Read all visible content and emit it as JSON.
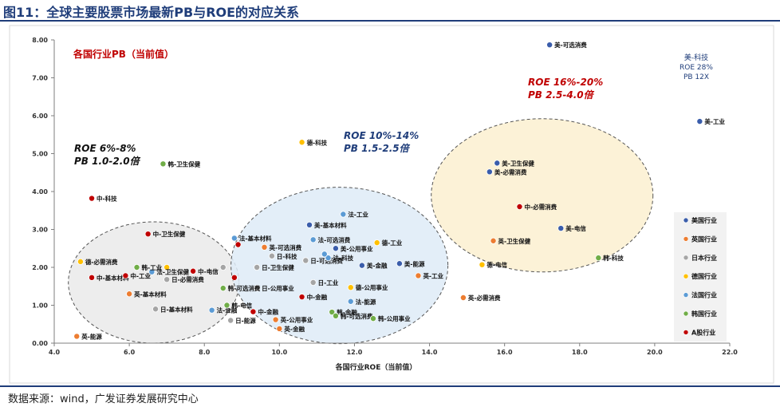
{
  "title": "图11：全球主要股票市场最新PB与ROE的对应关系",
  "source": "数据来源：wind，广发证券发展研究中心",
  "colors": {
    "美国行业": "#3a5dab",
    "英国行业": "#ed7d31",
    "日本行业": "#a5a5a5",
    "德国行业": "#ffc000",
    "法国行业": "#5b9bd5",
    "韩国行业": "#70ad47",
    "A股行业": "#c00000"
  },
  "chart_data": {
    "type": "scatter",
    "title": "",
    "xlabel": "各国行业ROE（当前值）",
    "ylabel": "各国行业PB（当前值）",
    "xlim": [
      4.0,
      22.0
    ],
    "ylim": [
      0.0,
      8.0
    ],
    "xticks": [
      "4.0",
      "6.0",
      "8.0",
      "10.0",
      "12.0",
      "14.0",
      "16.0",
      "18.0",
      "20.0",
      "22.0"
    ],
    "yticks": [
      "0.00",
      "1.00",
      "2.00",
      "3.00",
      "4.00",
      "5.00",
      "6.00",
      "7.00",
      "8.00"
    ],
    "legend": [
      "美国行业",
      "英国行业",
      "日本行业",
      "德国行业",
      "法国行业",
      "韩国行业",
      "A股行业"
    ],
    "legend_position": "right",
    "annotations": {
      "low": [
        "ROE  6%-8%",
        "PB  1.0-2.0倍"
      ],
      "mid": [
        "ROE  10%-14%",
        "PB  1.5-2.5倍"
      ],
      "high": [
        "ROE  16%-20%",
        "PB  2.5-4.0倍"
      ],
      "outlier": [
        "美-科技",
        "ROE 28%",
        "PB 12X"
      ]
    },
    "series": [
      {
        "name": "美国行业",
        "points": [
          {
            "x": 17.2,
            "y": 7.87,
            "label": "美-可选消费"
          },
          {
            "x": 21.2,
            "y": 5.85,
            "label": "美-工业"
          },
          {
            "x": 15.8,
            "y": 4.75,
            "label": "美-卫生保健"
          },
          {
            "x": 15.6,
            "y": 4.52,
            "label": "美-必需消费"
          },
          {
            "x": 17.5,
            "y": 3.03,
            "label": "美-电信"
          },
          {
            "x": 10.8,
            "y": 3.12,
            "label": "美-基本材料"
          },
          {
            "x": 13.2,
            "y": 2.1,
            "label": "美-能源"
          },
          {
            "x": 12.2,
            "y": 2.05,
            "label": "美-金融"
          },
          {
            "x": 11.5,
            "y": 2.5,
            "label": "美-公用事业"
          }
        ]
      },
      {
        "name": "英国行业",
        "points": [
          {
            "x": 15.7,
            "y": 2.7,
            "label": "英-卫生保健"
          },
          {
            "x": 14.9,
            "y": 1.2,
            "label": "英-必需消费"
          },
          {
            "x": 13.7,
            "y": 1.78,
            "label": "英-工业"
          },
          {
            "x": 9.6,
            "y": 2.53,
            "label": "英-可选消费"
          },
          {
            "x": 6.0,
            "y": 1.3,
            "label": "英-基本材料"
          },
          {
            "x": 4.6,
            "y": 0.18,
            "label": "英-能源"
          },
          {
            "x": 9.9,
            "y": 0.62,
            "label": "英-公用事业"
          },
          {
            "x": 10.0,
            "y": 0.38,
            "label": "英-金融"
          }
        ]
      },
      {
        "name": "日本行业",
        "points": [
          {
            "x": 9.8,
            "y": 2.3,
            "label": "日-科技"
          },
          {
            "x": 9.4,
            "y": 2.0,
            "label": "日-卫生保健"
          },
          {
            "x": 10.7,
            "y": 2.18,
            "label": "日-可选消费"
          },
          {
            "x": 9.4,
            "y": 1.45,
            "label": "日-公用事业"
          },
          {
            "x": 10.9,
            "y": 1.6,
            "label": "日-工业"
          },
          {
            "x": 7.0,
            "y": 1.68,
            "label": "日-必需消费"
          },
          {
            "x": 6.7,
            "y": 0.9,
            "label": "日-基本材料"
          },
          {
            "x": 8.7,
            "y": 0.6,
            "label": "日-能源"
          },
          {
            "x": 8.5,
            "y": 2.0,
            "label": ""
          }
        ]
      },
      {
        "name": "德国行业",
        "points": [
          {
            "x": 10.6,
            "y": 5.3,
            "label": "德-科技"
          },
          {
            "x": 4.7,
            "y": 2.15,
            "label": "德-必需消费"
          },
          {
            "x": 12.6,
            "y": 2.65,
            "label": "德-工业"
          },
          {
            "x": 15.4,
            "y": 2.07,
            "label": "德-电信"
          },
          {
            "x": 11.9,
            "y": 1.47,
            "label": "德-公用事业"
          },
          {
            "x": 7.0,
            "y": 2.0,
            "label": ""
          }
        ]
      },
      {
        "name": "法国行业",
        "points": [
          {
            "x": 11.7,
            "y": 3.4,
            "label": "法-工业"
          },
          {
            "x": 8.8,
            "y": 2.77,
            "label": "法-基本材料"
          },
          {
            "x": 10.9,
            "y": 2.73,
            "label": "法-可选消费"
          },
          {
            "x": 11.3,
            "y": 2.25,
            "label": "法-科技"
          },
          {
            "x": 6.6,
            "y": 1.88,
            "label": "法-卫生保健"
          },
          {
            "x": 11.9,
            "y": 1.1,
            "label": "法-能源"
          },
          {
            "x": 8.2,
            "y": 0.87,
            "label": "法-金融"
          },
          {
            "x": 11.2,
            "y": 2.35,
            "label": ""
          }
        ]
      },
      {
        "name": "韩国行业",
        "points": [
          {
            "x": 6.9,
            "y": 4.73,
            "label": "韩-卫生保健"
          },
          {
            "x": 18.5,
            "y": 2.25,
            "label": "韩-科技"
          },
          {
            "x": 6.2,
            "y": 2.0,
            "label": "韩-工业"
          },
          {
            "x": 8.6,
            "y": 1.0,
            "label": "韩-电信"
          },
          {
            "x": 11.4,
            "y": 0.82,
            "label": "韩-金融"
          },
          {
            "x": 11.5,
            "y": 0.72,
            "label": "韩-可选消费"
          },
          {
            "x": 12.5,
            "y": 0.65,
            "label": "韩-公用事业"
          },
          {
            "x": 8.5,
            "y": 1.45,
            "label": "韩-可选消费"
          }
        ]
      },
      {
        "name": "A股行业",
        "points": [
          {
            "x": 5.0,
            "y": 3.82,
            "label": "中-科技"
          },
          {
            "x": 16.4,
            "y": 3.6,
            "label": "中-必需消费"
          },
          {
            "x": 6.5,
            "y": 2.88,
            "label": "中-卫生保健"
          },
          {
            "x": 5.0,
            "y": 1.73,
            "label": "中-基本材料"
          },
          {
            "x": 5.9,
            "y": 1.78,
            "label": "中-工业"
          },
          {
            "x": 10.6,
            "y": 1.22,
            "label": "中-金融"
          },
          {
            "x": 9.3,
            "y": 0.83,
            "label": "中-金融"
          },
          {
            "x": 7.7,
            "y": 1.9,
            "label": "中-电信"
          },
          {
            "x": 8.9,
            "y": 2.6,
            "label": ""
          },
          {
            "x": 8.8,
            "y": 1.73,
            "label": ""
          }
        ]
      }
    ]
  }
}
